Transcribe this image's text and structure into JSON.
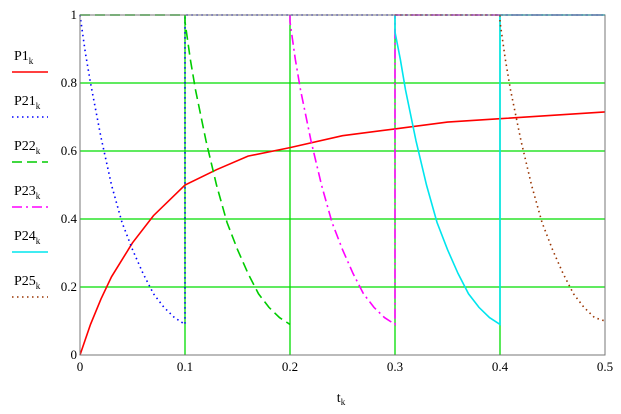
{
  "chart_data": {
    "type": "line",
    "title": "",
    "xlabel": "t",
    "xlabel_subscript": "k",
    "ylabel": "",
    "xlim": [
      0,
      0.5
    ],
    "ylim": [
      0,
      1
    ],
    "grid": true,
    "grid_color": "#00dd00",
    "legend_position": "left",
    "x_ticks": [
      "0",
      "0.1",
      "0.2",
      "0.3",
      "0.4",
      "0.5"
    ],
    "y_ticks": [
      "0",
      "0.2",
      "0.4",
      "0.6",
      "0.8",
      "1"
    ],
    "series": [
      {
        "name": "P1",
        "subscript": "k",
        "color": "#ff0000",
        "dash": "solid",
        "x": [
          0,
          0.01,
          0.02,
          0.03,
          0.05,
          0.07,
          0.1,
          0.13,
          0.16,
          0.2,
          0.25,
          0.3,
          0.35,
          0.4,
          0.45,
          0.5
        ],
        "y": [
          0,
          0.09,
          0.165,
          0.23,
          0.33,
          0.41,
          0.5,
          0.545,
          0.585,
          0.61,
          0.645,
          0.665,
          0.685,
          0.695,
          0.705,
          0.715
        ]
      },
      {
        "name": "P21",
        "subscript": "k",
        "color": "#0000ff",
        "dash": "dotted",
        "x": [
          0,
          0.005,
          0.01,
          0.02,
          0.03,
          0.04,
          0.05,
          0.06,
          0.07,
          0.08,
          0.09,
          0.1,
          0.1,
          0.2,
          0.2,
          0.3,
          0.3,
          0.4,
          0.4,
          0.5
        ],
        "y": [
          1.0,
          0.89,
          0.8,
          0.64,
          0.5,
          0.39,
          0.31,
          0.24,
          0.18,
          0.14,
          0.11,
          0.09,
          1.0,
          1.0,
          1.0,
          1.0,
          1.0,
          1.0,
          1.0,
          1.0
        ]
      },
      {
        "name": "P22",
        "subscript": "k",
        "color": "#00cc00",
        "dash": "dashed",
        "x": [
          0,
          0.1,
          0.1,
          0.105,
          0.11,
          0.12,
          0.13,
          0.14,
          0.15,
          0.16,
          0.17,
          0.18,
          0.19,
          0.2
        ],
        "y": [
          1.0,
          1.0,
          0.98,
          0.87,
          0.78,
          0.63,
          0.5,
          0.39,
          0.31,
          0.24,
          0.18,
          0.14,
          0.11,
          0.09
        ]
      },
      {
        "name": "P23",
        "subscript": "k",
        "color": "#ff00ff",
        "dash": "dashdot",
        "x": [
          0.2,
          0.2,
          0.205,
          0.21,
          0.22,
          0.23,
          0.24,
          0.25,
          0.26,
          0.27,
          0.28,
          0.29,
          0.3,
          0.3,
          0.4,
          0.4,
          0.5
        ],
        "y": [
          1.0,
          0.98,
          0.87,
          0.78,
          0.63,
          0.5,
          0.39,
          0.31,
          0.24,
          0.18,
          0.14,
          0.11,
          0.09,
          1.0,
          1.0,
          1.0,
          1.0
        ]
      },
      {
        "name": "P24",
        "subscript": "k",
        "color": "#00e5ee",
        "dash": "solid",
        "x": [
          0.3,
          0.3,
          0.305,
          0.31,
          0.32,
          0.33,
          0.34,
          0.35,
          0.36,
          0.37,
          0.38,
          0.39,
          0.4,
          0.4,
          0.5
        ],
        "y": [
          1.0,
          0.95,
          0.87,
          0.78,
          0.63,
          0.5,
          0.39,
          0.31,
          0.24,
          0.18,
          0.14,
          0.11,
          0.09,
          1.0,
          1.0
        ]
      },
      {
        "name": "P25",
        "subscript": "k",
        "color": "#993300",
        "dash": "dotted",
        "x": [
          0.3,
          0.4,
          0.4,
          0.405,
          0.41,
          0.42,
          0.43,
          0.44,
          0.45,
          0.46,
          0.47,
          0.48,
          0.49,
          0.5
        ],
        "y": [
          1.0,
          1.0,
          0.98,
          0.87,
          0.78,
          0.63,
          0.5,
          0.39,
          0.31,
          0.24,
          0.18,
          0.14,
          0.11,
          0.1
        ]
      }
    ]
  }
}
